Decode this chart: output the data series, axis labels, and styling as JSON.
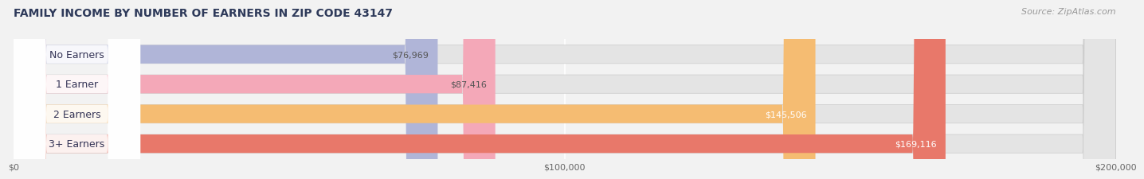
{
  "title": "FAMILY INCOME BY NUMBER OF EARNERS IN ZIP CODE 43147",
  "source": "Source: ZipAtlas.com",
  "categories": [
    "No Earners",
    "1 Earner",
    "2 Earners",
    "3+ Earners"
  ],
  "values": [
    76969,
    87416,
    145506,
    169116
  ],
  "bar_colors": [
    "#b0b5d8",
    "#f4a8b8",
    "#f5bc72",
    "#e8786a"
  ],
  "label_colors": [
    "#555555",
    "#555555",
    "#ffffff",
    "#ffffff"
  ],
  "label_values": [
    "$76,969",
    "$87,416",
    "$145,506",
    "$169,116"
  ],
  "x_max": 200000,
  "x_ticks": [
    0,
    100000,
    200000
  ],
  "x_tick_labels": [
    "$0",
    "$100,000",
    "$200,000"
  ],
  "background_color": "#f2f2f2",
  "bar_bg_color": "#e4e4e4",
  "title_color": "#2e3a5a",
  "source_color": "#999999",
  "title_fontsize": 10,
  "source_fontsize": 8,
  "label_fontsize": 8,
  "category_fontsize": 9
}
